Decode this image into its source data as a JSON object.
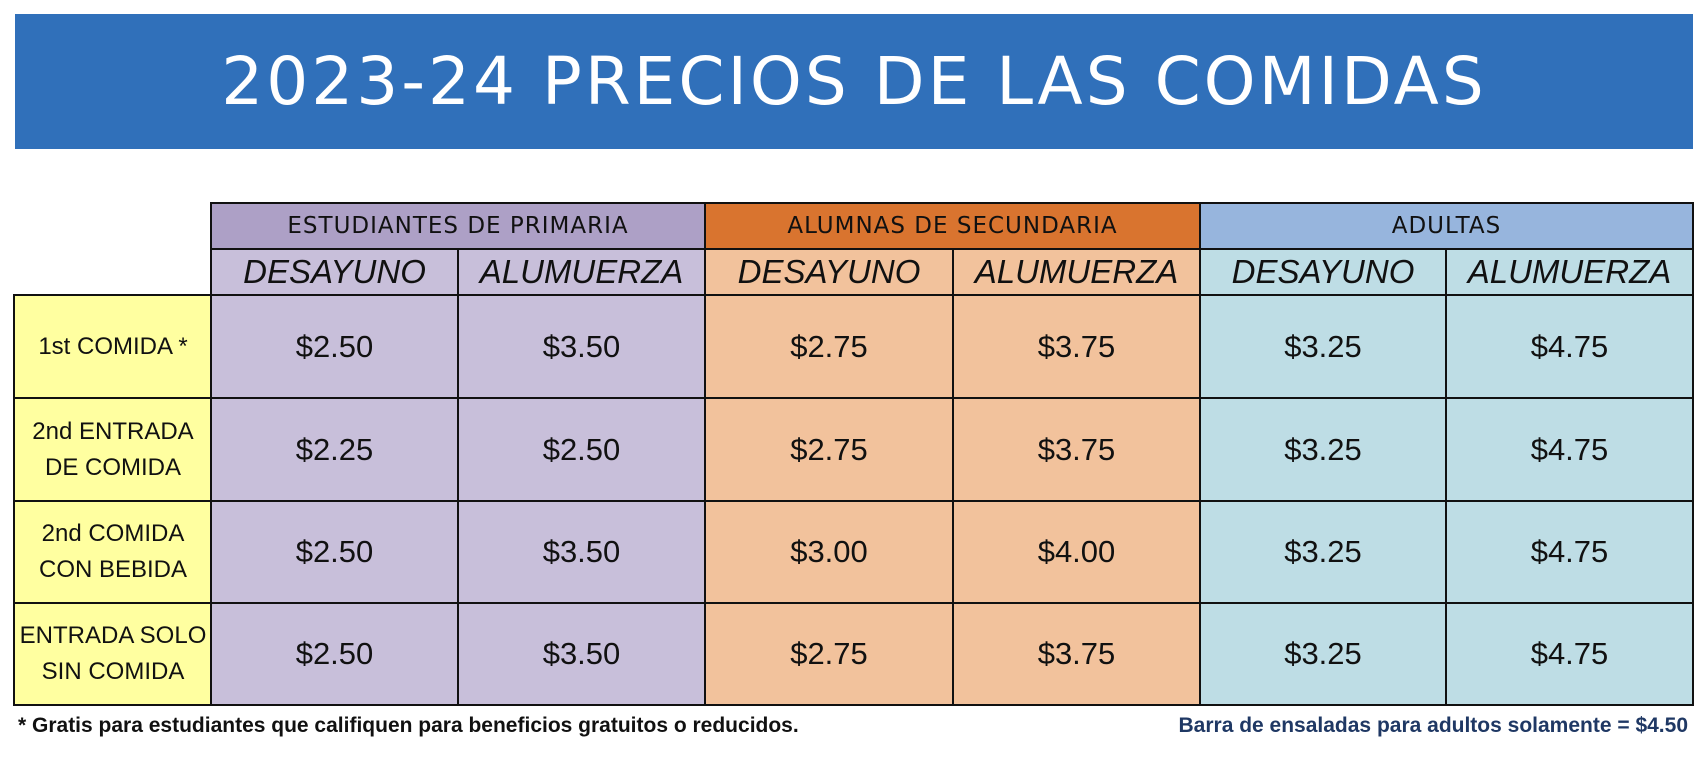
{
  "header": {
    "title": "2023-24 PRECIOS DE LAS COMIDAS"
  },
  "table": {
    "groups": [
      "ESTUDIANTES DE PRIMARIA",
      "ALUMNAS DE SECUNDARIA",
      "ADULTAS"
    ],
    "subheaders": [
      "DESAYUNO",
      "ALUMUERZA",
      "DESAYUNO",
      "ALUMUERZA",
      "DESAYUNO",
      "ALUMUERZA"
    ],
    "rows": [
      {
        "label": [
          "1st COMIDA *"
        ],
        "cells": [
          "$2.50",
          "$3.50",
          "$2.75",
          "$3.75",
          "$3.25",
          "$4.75"
        ]
      },
      {
        "label": [
          "2nd ENTRADA",
          "DE COMIDA"
        ],
        "cells": [
          "$2.25",
          "$2.50",
          "$2.75",
          "$3.75",
          "$3.25",
          "$4.75"
        ]
      },
      {
        "label": [
          "2nd COMIDA",
          "CON BEBIDA"
        ],
        "cells": [
          "$2.50",
          "$3.50",
          "$3.00",
          "$4.00",
          "$3.25",
          "$4.75"
        ]
      },
      {
        "label": [
          "ENTRADA SOLO",
          "SIN COMIDA"
        ],
        "cells": [
          "$2.50",
          "$3.50",
          "$2.75",
          "$3.75",
          "$3.25",
          "$4.75"
        ]
      }
    ]
  },
  "footer": {
    "note": "* Gratis para estudiantes que califiquen para beneficios gratuitos o reducidos.",
    "salad_bar": "Barra de ensaladas para adultos solamente = $4.50"
  }
}
